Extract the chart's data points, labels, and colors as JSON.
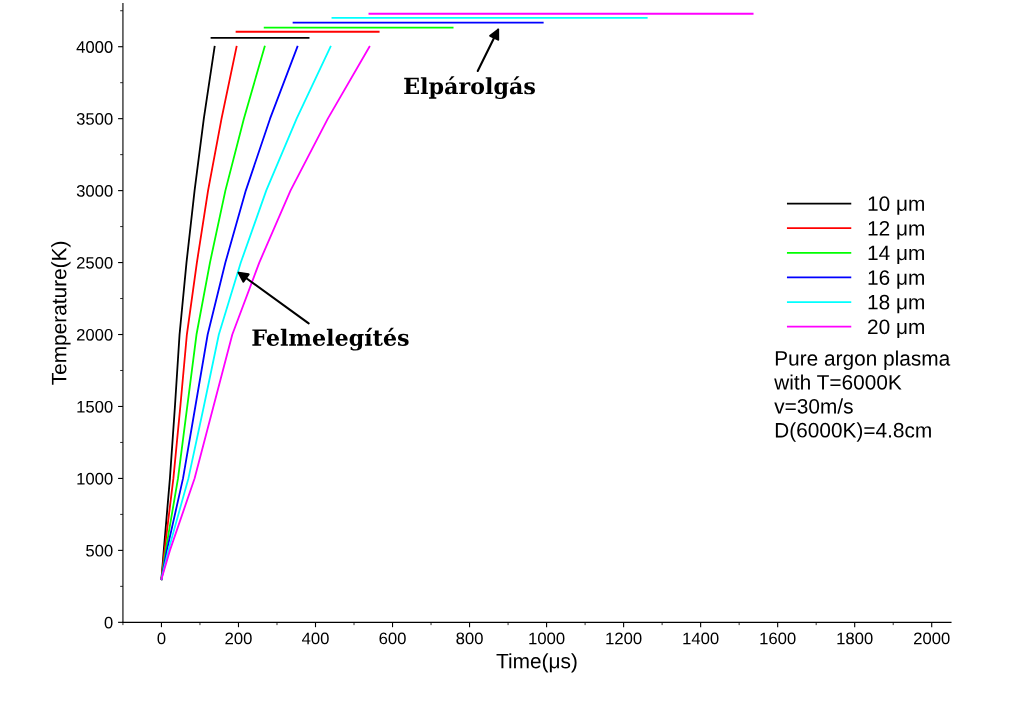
{
  "chart_data": {
    "type": "line",
    "xlabel": "Time(μs)",
    "ylabel": "Temperature(K)",
    "xlim": [
      -100,
      2050
    ],
    "ylim": [
      0,
      4300
    ],
    "xticks": [
      0,
      200,
      400,
      600,
      800,
      1000,
      1200,
      1400,
      1600,
      1800,
      2000
    ],
    "yticks": [
      0,
      500,
      1000,
      1500,
      2000,
      2500,
      3000,
      3500,
      4000
    ],
    "grid": false,
    "legend": "right",
    "marker": "none",
    "line_style": "solid",
    "series": [
      {
        "name": "10 μm",
        "color": "#000000",
        "x": [
          0,
          6,
          22,
          35,
          47,
          65,
          86,
          110,
          138
        ],
        "values": [
          300,
          500,
          1000,
          1500,
          2000,
          2500,
          3000,
          3500,
          4000
        ]
      },
      {
        "name": "12 μm",
        "color": "#ff0000",
        "x": [
          0,
          8,
          31,
          49,
          66,
          92,
          121,
          156,
          195
        ],
        "values": [
          300,
          500,
          1000,
          1500,
          2000,
          2500,
          3000,
          3500,
          4000
        ]
      },
      {
        "name": "14 μm",
        "color": "#00ff00",
        "x": [
          0,
          11,
          43,
          67,
          91,
          126,
          166,
          214,
          268
        ],
        "values": [
          300,
          500,
          1000,
          1500,
          2000,
          2500,
          3000,
          3500,
          4000
        ]
      },
      {
        "name": "16 μm",
        "color": "#0000ff",
        "x": [
          0,
          14,
          56,
          88,
          120,
          166,
          219,
          282,
          353
        ],
        "values": [
          300,
          500,
          1000,
          1500,
          2000,
          2500,
          3000,
          3500,
          4000
        ]
      },
      {
        "name": "18 μm",
        "color": "#00ffff",
        "x": [
          0,
          18,
          70,
          110,
          149,
          206,
          272,
          351,
          439
        ],
        "values": [
          300,
          500,
          1000,
          1500,
          2000,
          2500,
          3000,
          3500,
          4000
        ]
      },
      {
        "name": "20 μm",
        "color": "#ff00ff",
        "x": [
          0,
          22,
          86,
          135,
          184,
          254,
          335,
          432,
          540
        ],
        "values": [
          300,
          500,
          1000,
          1500,
          2000,
          2500,
          3000,
          3500,
          4000
        ]
      },
      {
        "color": "#000000",
        "x": [
          130,
          382
        ],
        "values": [
          4062,
          4062
        ]
      },
      {
        "color": "#ff0000",
        "x": [
          195,
          564
        ],
        "values": [
          4104,
          4104
        ]
      },
      {
        "color": "#00ff00",
        "x": [
          268,
          756
        ],
        "values": [
          4132,
          4132
        ]
      },
      {
        "color": "#0000ff",
        "x": [
          343,
          990
        ],
        "values": [
          4167,
          4167
        ]
      },
      {
        "color": "#00ffff",
        "x": [
          444,
          1260
        ],
        "values": [
          4201,
          4201
        ]
      },
      {
        "color": "#ff00ff",
        "x": [
          540,
          1535
        ],
        "values": [
          4229,
          4229
        ]
      }
    ],
    "annotations": [
      {
        "text": "Elpárolgás",
        "x": 880,
        "y": 4150
      },
      {
        "text": "Felmelegítés",
        "x": 190,
        "y": 2450
      },
      "Pure argon plasma\nwith T=6000K\nv=30m/s\nD(6000K)=4.8cm"
    ]
  }
}
